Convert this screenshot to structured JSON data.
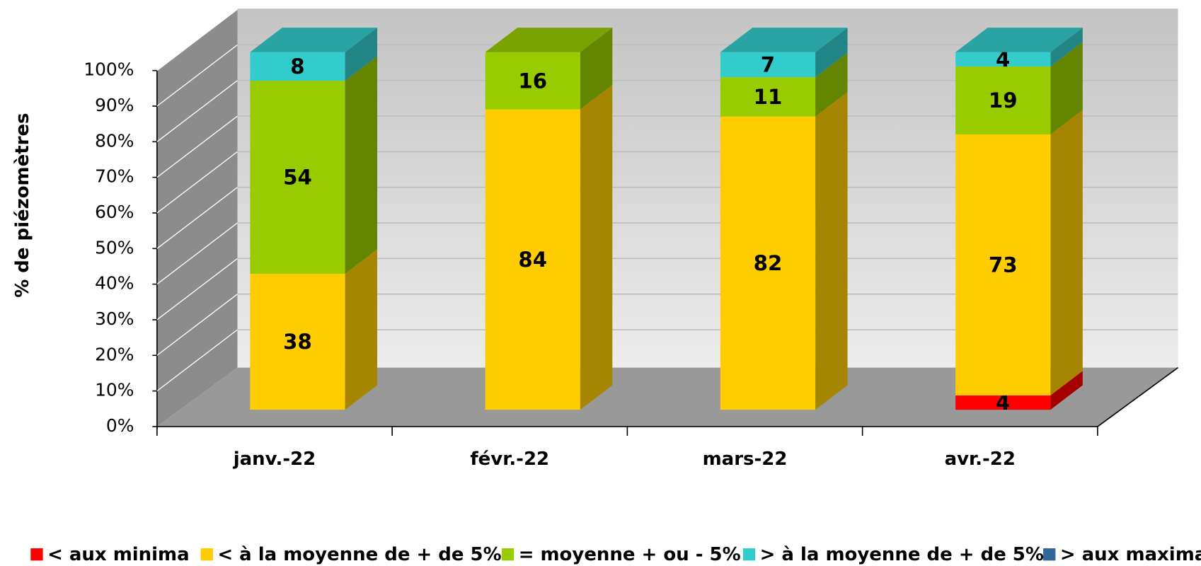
{
  "chart_data": {
    "type": "bar3d_stacked",
    "y_label": "% de piézomètres",
    "categories": [
      "janv.-22",
      "févr.-22",
      "mars-22",
      "avr.-22"
    ],
    "series": [
      {
        "name": "< aux minima",
        "color": "#ff0000",
        "values": [
          0,
          0,
          0,
          4
        ]
      },
      {
        "name": "< à la moyenne de + de 5%",
        "color": "#ffcc00",
        "values": [
          38,
          84,
          82,
          73
        ]
      },
      {
        "name": "= moyenne + ou - 5%",
        "color": "#99cc00",
        "values": [
          54,
          16,
          11,
          19
        ]
      },
      {
        "name": "> à la moyenne de + de 5%",
        "color": "#33cccc",
        "values": [
          8,
          0,
          7,
          4
        ]
      },
      {
        "name": "> aux maxima",
        "color": "#336699",
        "values": [
          0,
          0,
          0,
          0
        ]
      }
    ],
    "ylim": [
      0,
      100
    ],
    "yticks": [
      {
        "value": 0,
        "label": "0%"
      },
      {
        "value": 10,
        "label": "10%"
      },
      {
        "value": 20,
        "label": "20%"
      },
      {
        "value": 30,
        "label": "30%"
      },
      {
        "value": 40,
        "label": "40%"
      },
      {
        "value": 50,
        "label": "50%"
      },
      {
        "value": 60,
        "label": "60%"
      },
      {
        "value": 70,
        "label": "70%"
      },
      {
        "value": 80,
        "label": "80%"
      },
      {
        "value": 90,
        "label": "90%"
      },
      {
        "value": 100,
        "label": "100%"
      }
    ],
    "grid": true,
    "legend": "bottom"
  }
}
